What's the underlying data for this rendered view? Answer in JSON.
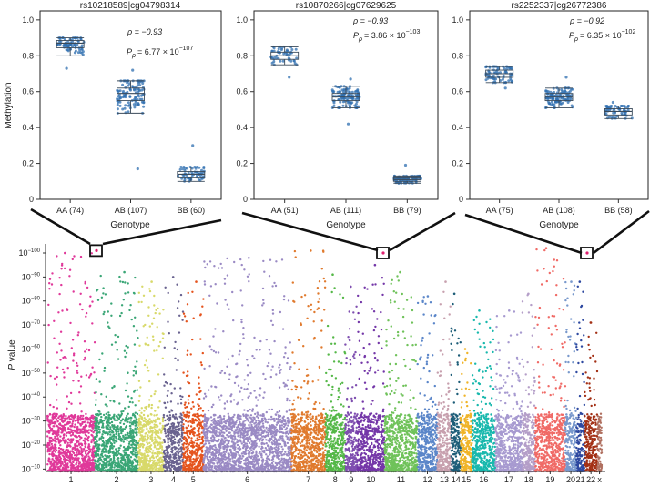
{
  "chart_data": [
    {
      "type": "scatter",
      "subtype": "box-strip",
      "title": "rs10218589|cg04798314",
      "xlabel": "Genotype",
      "ylabel": "Methylation",
      "ylim": [
        0,
        1.05
      ],
      "yticks": [
        0,
        0.2,
        0.4,
        0.6,
        0.8,
        1.0
      ],
      "ytick_labels": [
        "0",
        "0.2",
        "0.4",
        "0.6",
        "0.8",
        "1.0"
      ],
      "categories": [
        "AA (74)",
        "AB (107)",
        "BB (60)"
      ],
      "counts": [
        74,
        107,
        60
      ],
      "medians": [
        0.87,
        0.59,
        0.14
      ],
      "q1": [
        0.845,
        0.55,
        0.12
      ],
      "q3": [
        0.885,
        0.62,
        0.155
      ],
      "whisker_low": [
        0.8,
        0.48,
        0.1
      ],
      "whisker_high": [
        0.9,
        0.66,
        0.18
      ],
      "outliers": [
        [
          0.73
        ],
        [
          0.17,
          0.72
        ],
        [
          0.3
        ]
      ],
      "rho_label": "ρ = −0.93",
      "p_label": "P",
      "p_sub": "ρ",
      "p_value": "= 6.77 × 10",
      "p_exp": "−107"
    },
    {
      "type": "scatter",
      "subtype": "box-strip",
      "title": "rs10870266|cg07629625",
      "xlabel": "Genotype",
      "ylabel": "",
      "ylim": [
        0,
        1.05
      ],
      "yticks": [
        0,
        0.2,
        0.4,
        0.6,
        0.8,
        1.0
      ],
      "ytick_labels": [
        "0",
        "0.2",
        "0.4",
        "0.6",
        "0.8",
        "1.0"
      ],
      "categories": [
        "AA (51)",
        "AB (111)",
        "BB (79)"
      ],
      "counts": [
        51,
        111,
        79
      ],
      "medians": [
        0.8,
        0.57,
        0.11
      ],
      "q1": [
        0.78,
        0.55,
        0.1
      ],
      "q3": [
        0.82,
        0.59,
        0.12
      ],
      "whisker_low": [
        0.75,
        0.51,
        0.09
      ],
      "whisker_high": [
        0.85,
        0.63,
        0.13
      ],
      "outliers": [
        [
          0.68
        ],
        [
          0.42,
          0.67
        ],
        [
          0.19
        ]
      ],
      "rho_label": "ρ = −0.93",
      "p_label": "P",
      "p_sub": "ρ",
      "p_value": "= 3.86 × 10",
      "p_exp": "−103"
    },
    {
      "type": "scatter",
      "subtype": "box-strip",
      "title": "rs2252337|cg26772386",
      "xlabel": "Genotype",
      "ylabel": "",
      "ylim": [
        0,
        1.05
      ],
      "yticks": [
        0,
        0.2,
        0.4,
        0.6,
        0.8,
        1.0
      ],
      "ytick_labels": [
        "0",
        "0.2",
        "0.4",
        "0.6",
        "0.8",
        "1.0"
      ],
      "categories": [
        "AA (75)",
        "AB (108)",
        "BB (58)"
      ],
      "counts": [
        75,
        108,
        58
      ],
      "medians": [
        0.7,
        0.57,
        0.49
      ],
      "q1": [
        0.68,
        0.55,
        0.47
      ],
      "q3": [
        0.72,
        0.59,
        0.505
      ],
      "whisker_low": [
        0.65,
        0.51,
        0.45
      ],
      "whisker_high": [
        0.74,
        0.62,
        0.52
      ],
      "outliers": [
        [
          0.62
        ],
        [
          0.68
        ],
        [
          0.54
        ]
      ],
      "rho_label": "ρ = −0.92",
      "p_label": "P",
      "p_sub": "ρ",
      "p_value": "= 6.35 × 10",
      "p_exp": "−102"
    },
    {
      "type": "scatter",
      "subtype": "manhattan",
      "ylabel_italic": "P",
      "ylabel_rest": " value",
      "ylim_exp": [
        -9,
        -100
      ],
      "yticks_exp": [
        -10,
        -20,
        -30,
        -40,
        -50,
        -60,
        -70,
        -80,
        -90,
        -100
      ],
      "ytick_base": "10",
      "ytick_exps": [
        "−10",
        "−20",
        "−30",
        "−40",
        "−50",
        "−60",
        "−70",
        "−80",
        "−90",
        "−100"
      ],
      "chromosomes": [
        "1",
        "2",
        "3",
        "4",
        "5",
        "6",
        "7",
        "8",
        "9",
        "10",
        "11",
        "12",
        "13",
        "14",
        "15",
        "16",
        "17",
        "18",
        "19",
        "20",
        "21",
        "22",
        "x"
      ],
      "chr_widths": [
        8.6,
        7.9,
        4.6,
        3.5,
        3.7,
        15.9,
        6.2,
        3.6,
        2.2,
        4.9,
        6.0,
        3.6,
        2.5,
        1.7,
        2.1,
        4.2,
        4.9,
        2.3,
        5.5,
        2.0,
        1.5,
        2.3,
        0.8
      ],
      "colors": [
        "#e0399a",
        "#3aa676",
        "#d8d96a",
        "#6a6390",
        "#e5541e",
        "#9a8ac4",
        "#e07a2e",
        "#55b848",
        "#7f4fb0",
        "#7437a8",
        "#6fc25a",
        "#5b86c9",
        "#c7a0ae",
        "#1d5d78",
        "#f0b428",
        "#18b8ad",
        "#a79ad0",
        "#b49ec8",
        "#f06a66",
        "#7898cc",
        "#2e49a0",
        "#a33015",
        "#b07060"
      ],
      "peak_exp": [
        -100,
        -92,
        -88,
        -90,
        -88,
        -98,
        -101,
        -91,
        -86,
        -95,
        -92,
        -82,
        -88,
        -83,
        -60,
        -76,
        -76,
        -83,
        -102,
        -88,
        -88,
        -71,
        -30
      ],
      "highlighted": [
        {
          "chromosome": "1",
          "exp": -101
        },
        {
          "chromosome": "11",
          "exp": -100
        },
        {
          "chromosome": "22",
          "exp": -100
        }
      ]
    }
  ]
}
